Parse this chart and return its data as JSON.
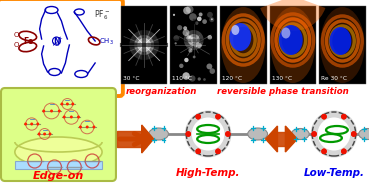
{
  "microscopy_labels": [
    "30 °C",
    "110 °C",
    "120 °C",
    "130 °C",
    "Re 30 °C"
  ],
  "reorganization_text": "reorganization",
  "reversible_text": "reversible phase transition",
  "bottom_labels": [
    "Edge-on",
    "High-Temp.",
    "Low-Temp."
  ],
  "bottom_label_colors": [
    "#FF0000",
    "#FF0000",
    "#0000EE"
  ],
  "red_text_color": "#FF0000",
  "arrow_color": "#CC4400",
  "chem_struct_bg": "#FFFFFF",
  "chem_struct_border": "#FF8800",
  "edge_on_bg": "#DDFF88",
  "edge_on_border": "#AABB44"
}
